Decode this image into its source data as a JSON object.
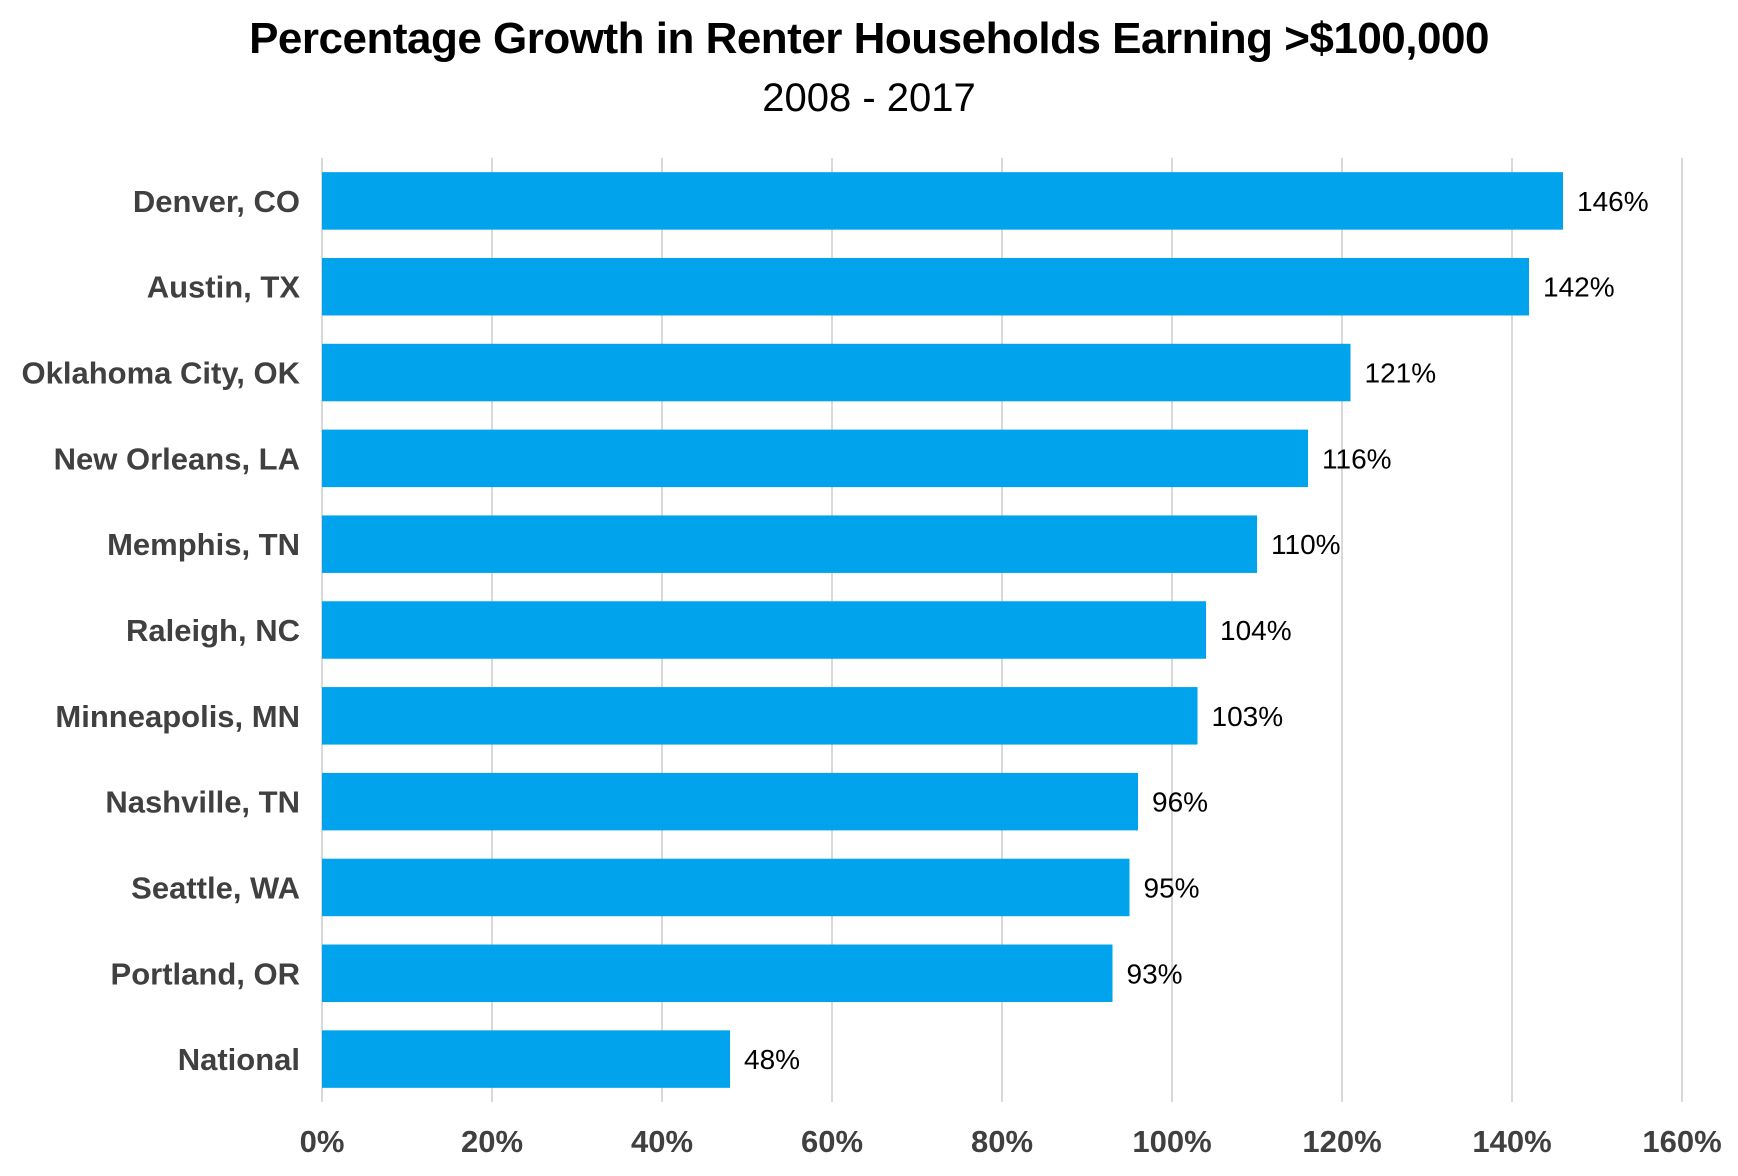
{
  "chart_data": {
    "type": "bar",
    "orientation": "horizontal",
    "title": "Percentage Growth in Renter Households Earning >$100,000",
    "subtitle": "2008 - 2017",
    "categories": [
      "Denver, CO",
      "Austin, TX",
      "Oklahoma City, OK",
      "New Orleans, LA",
      "Memphis, TN",
      "Raleigh, NC",
      "Minneapolis, MN",
      "Nashville, TN",
      "Seattle, WA",
      "Portland, OR",
      "National"
    ],
    "values": [
      146,
      142,
      121,
      116,
      110,
      104,
      103,
      96,
      95,
      93,
      48
    ],
    "data_labels": [
      "146%",
      "142%",
      "121%",
      "116%",
      "110%",
      "104%",
      "103%",
      "96%",
      "95%",
      "93%",
      "48%"
    ],
    "x_ticks": [
      0,
      20,
      40,
      60,
      80,
      100,
      120,
      140,
      160
    ],
    "x_tick_labels": [
      "0%",
      "20%",
      "40%",
      "60%",
      "80%",
      "100%",
      "120%",
      "140%",
      "160%"
    ],
    "xlim": [
      0,
      160
    ],
    "xlabel": "",
    "ylabel": "",
    "grid": "vertical",
    "legend": "none",
    "bar_color": "#00A3EC",
    "grid_color": "#D9D9D9"
  }
}
